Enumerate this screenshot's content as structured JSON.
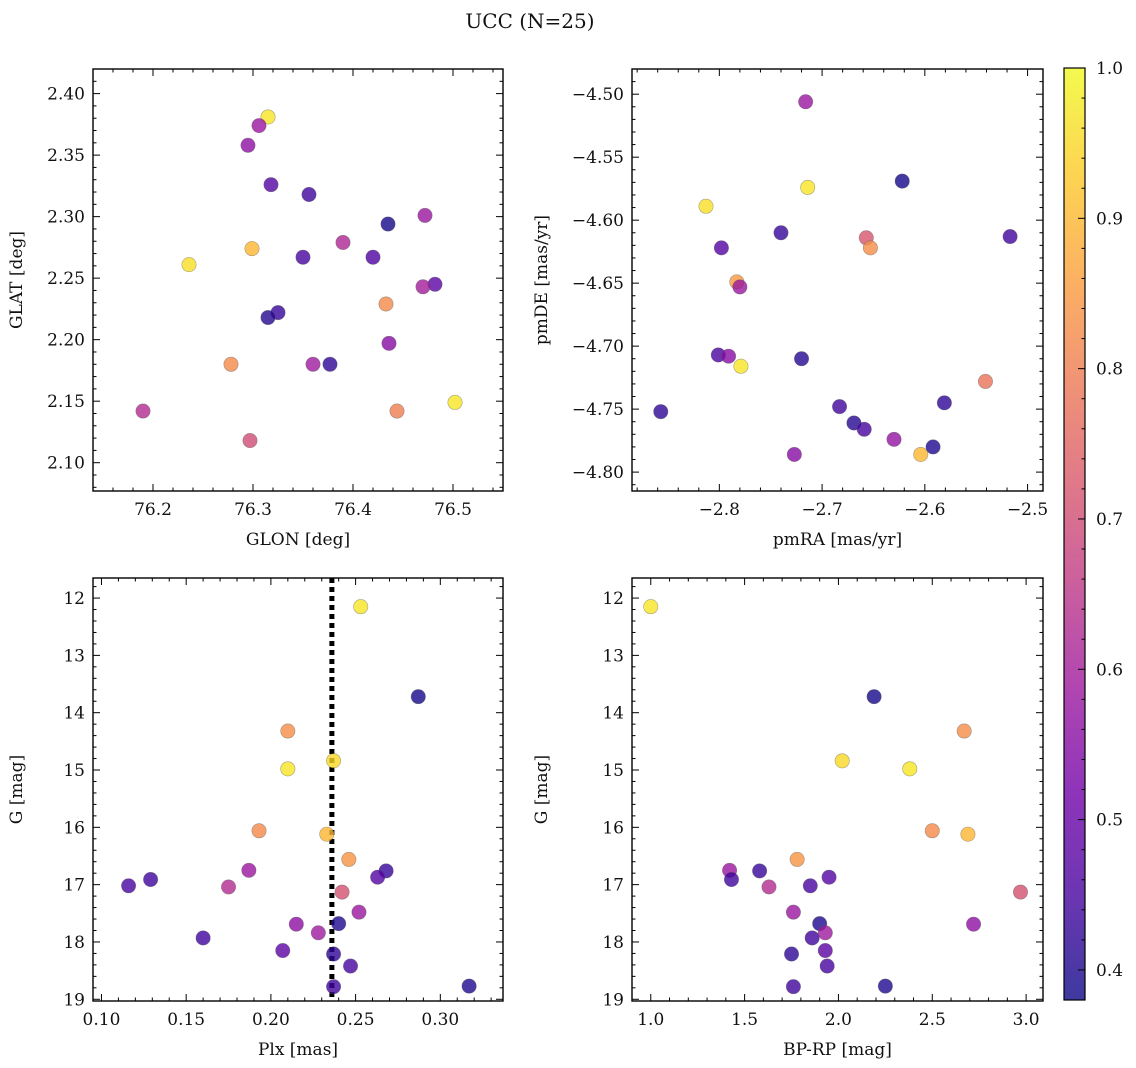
{
  "figure": {
    "title": "UCC (N=25)"
  },
  "colorbar": {
    "min": 0.38,
    "max": 1.0,
    "ticks": [
      0.4,
      0.5,
      0.6,
      0.7,
      0.8,
      0.9,
      1.0
    ],
    "tick_labels": [
      "0.4",
      "0.5",
      "0.6",
      "0.7",
      "0.8",
      "0.9",
      "1.0"
    ],
    "colormap": "plasma",
    "stops": [
      "#0d0887",
      "#46039f",
      "#7201a8",
      "#9c179e",
      "#bd3786",
      "#d8576b",
      "#ed7953",
      "#fb9f3a",
      "#fdca26",
      "#f0f921"
    ],
    "alpha": 0.8
  },
  "chart_data": [
    {
      "id": "glon-glat",
      "type": "scatter",
      "title": "",
      "xlabel": "GLON [deg]",
      "ylabel": "GLAT [deg]",
      "xlim": [
        76.14,
        76.55
      ],
      "ylim": [
        2.077,
        2.42
      ],
      "y_inverted": false,
      "xticks": [
        76.2,
        76.3,
        76.4,
        76.5
      ],
      "xtick_labels": [
        "76.2",
        "76.3",
        "76.4",
        "76.5"
      ],
      "yticks": [
        2.1,
        2.15,
        2.2,
        2.25,
        2.3,
        2.35,
        2.4
      ],
      "ytick_labels": [
        "2.10",
        "2.15",
        "2.20",
        "2.25",
        "2.30",
        "2.35",
        "2.40"
      ],
      "points": [
        {
          "x": 76.315,
          "y": 2.381,
          "c": 0.97
        },
        {
          "x": 76.306,
          "y": 2.374,
          "c": 0.58
        },
        {
          "x": 76.295,
          "y": 2.358,
          "c": 0.56
        },
        {
          "x": 76.318,
          "y": 2.326,
          "c": 0.47
        },
        {
          "x": 76.356,
          "y": 2.318,
          "c": 0.44
        },
        {
          "x": 76.472,
          "y": 2.301,
          "c": 0.58
        },
        {
          "x": 76.435,
          "y": 2.294,
          "c": 0.39
        },
        {
          "x": 76.39,
          "y": 2.279,
          "c": 0.62
        },
        {
          "x": 76.299,
          "y": 2.274,
          "c": 0.9
        },
        {
          "x": 76.35,
          "y": 2.267,
          "c": 0.45
        },
        {
          "x": 76.42,
          "y": 2.267,
          "c": 0.46
        },
        {
          "x": 76.236,
          "y": 2.261,
          "c": 0.96
        },
        {
          "x": 76.482,
          "y": 2.245,
          "c": 0.48
        },
        {
          "x": 76.47,
          "y": 2.243,
          "c": 0.6
        },
        {
          "x": 76.433,
          "y": 2.229,
          "c": 0.82
        },
        {
          "x": 76.325,
          "y": 2.222,
          "c": 0.43
        },
        {
          "x": 76.315,
          "y": 2.218,
          "c": 0.41
        },
        {
          "x": 76.436,
          "y": 2.197,
          "c": 0.55
        },
        {
          "x": 76.278,
          "y": 2.18,
          "c": 0.82
        },
        {
          "x": 76.36,
          "y": 2.18,
          "c": 0.59
        },
        {
          "x": 76.377,
          "y": 2.18,
          "c": 0.42
        },
        {
          "x": 76.502,
          "y": 2.149,
          "c": 0.97
        },
        {
          "x": 76.444,
          "y": 2.142,
          "c": 0.8
        },
        {
          "x": 76.19,
          "y": 2.142,
          "c": 0.63
        },
        {
          "x": 76.297,
          "y": 2.118,
          "c": 0.7
        }
      ]
    },
    {
      "id": "pm",
      "type": "scatter",
      "title": "",
      "xlabel": "pmRA [mas/yr]",
      "ylabel": "pmDE [mas/yr]",
      "xlim": [
        -2.885,
        -2.485
      ],
      "ylim": [
        -4.815,
        -4.48
      ],
      "y_inverted": false,
      "xticks": [
        -2.8,
        -2.7,
        -2.6,
        -2.5
      ],
      "xtick_labels": [
        "−2.8",
        "−2.7",
        "−2.6",
        "−2.5"
      ],
      "yticks": [
        -4.8,
        -4.75,
        -4.7,
        -4.65,
        -4.6,
        -4.55,
        -4.5
      ],
      "ytick_labels": [
        "−4.80",
        "−4.75",
        "−4.70",
        "−4.65",
        "−4.60",
        "−4.55",
        "−4.50"
      ],
      "points": [
        {
          "x": -2.716,
          "y": -4.506,
          "c": 0.58
        },
        {
          "x": -2.714,
          "y": -4.574,
          "c": 0.97
        },
        {
          "x": -2.622,
          "y": -4.569,
          "c": 0.39
        },
        {
          "x": -2.813,
          "y": -4.589,
          "c": 0.96
        },
        {
          "x": -2.74,
          "y": -4.61,
          "c": 0.43
        },
        {
          "x": -2.517,
          "y": -4.613,
          "c": 0.44
        },
        {
          "x": -2.657,
          "y": -4.614,
          "c": 0.72
        },
        {
          "x": -2.653,
          "y": -4.622,
          "c": 0.83
        },
        {
          "x": -2.798,
          "y": -4.622,
          "c": 0.47
        },
        {
          "x": -2.783,
          "y": -4.649,
          "c": 0.85
        },
        {
          "x": -2.78,
          "y": -4.653,
          "c": 0.58
        },
        {
          "x": -2.801,
          "y": -4.707,
          "c": 0.45
        },
        {
          "x": -2.791,
          "y": -4.708,
          "c": 0.55
        },
        {
          "x": -2.72,
          "y": -4.71,
          "c": 0.41
        },
        {
          "x": -2.779,
          "y": -4.716,
          "c": 0.97
        },
        {
          "x": -2.541,
          "y": -4.728,
          "c": 0.78
        },
        {
          "x": -2.581,
          "y": -4.745,
          "c": 0.42
        },
        {
          "x": -2.683,
          "y": -4.748,
          "c": 0.44
        },
        {
          "x": -2.857,
          "y": -4.752,
          "c": 0.42
        },
        {
          "x": -2.63,
          "y": -4.774,
          "c": 0.57
        },
        {
          "x": -2.669,
          "y": -4.761,
          "c": 0.41
        },
        {
          "x": -2.659,
          "y": -4.766,
          "c": 0.45
        },
        {
          "x": -2.592,
          "y": -4.78,
          "c": 0.4
        },
        {
          "x": -2.727,
          "y": -4.786,
          "c": 0.55
        },
        {
          "x": -2.604,
          "y": -4.786,
          "c": 0.9
        }
      ]
    },
    {
      "id": "plx-g",
      "type": "scatter",
      "title": "",
      "xlabel": "Plx [mas]",
      "ylabel": "G [mag]",
      "xlim": [
        0.095,
        0.337
      ],
      "ylim": [
        19.03,
        11.65
      ],
      "y_inverted": true,
      "vline": 0.236,
      "xticks": [
        0.1,
        0.15,
        0.2,
        0.25,
        0.3
      ],
      "xtick_labels": [
        "0.10",
        "0.15",
        "0.20",
        "0.25",
        "0.30"
      ],
      "yticks": [
        12,
        13,
        14,
        15,
        16,
        17,
        18,
        19
      ],
      "ytick_labels": [
        "12",
        "13",
        "14",
        "15",
        "16",
        "17",
        "18",
        "19"
      ],
      "points": [
        {
          "x": 0.253,
          "y": 12.15,
          "c": 0.97
        },
        {
          "x": 0.287,
          "y": 13.72,
          "c": 0.39
        },
        {
          "x": 0.21,
          "y": 14.32,
          "c": 0.83
        },
        {
          "x": 0.237,
          "y": 14.84,
          "c": 0.95
        },
        {
          "x": 0.21,
          "y": 14.98,
          "c": 0.97
        },
        {
          "x": 0.193,
          "y": 16.06,
          "c": 0.82
        },
        {
          "x": 0.233,
          "y": 16.12,
          "c": 0.9
        },
        {
          "x": 0.246,
          "y": 16.56,
          "c": 0.84
        },
        {
          "x": 0.187,
          "y": 16.75,
          "c": 0.58
        },
        {
          "x": 0.268,
          "y": 16.76,
          "c": 0.43
        },
        {
          "x": 0.263,
          "y": 16.87,
          "c": 0.47
        },
        {
          "x": 0.129,
          "y": 16.91,
          "c": 0.44
        },
        {
          "x": 0.116,
          "y": 17.02,
          "c": 0.45
        },
        {
          "x": 0.175,
          "y": 17.04,
          "c": 0.63
        },
        {
          "x": 0.242,
          "y": 17.13,
          "c": 0.71
        },
        {
          "x": 0.252,
          "y": 17.48,
          "c": 0.58
        },
        {
          "x": 0.24,
          "y": 17.68,
          "c": 0.4
        },
        {
          "x": 0.215,
          "y": 17.69,
          "c": 0.56
        },
        {
          "x": 0.228,
          "y": 17.84,
          "c": 0.59
        },
        {
          "x": 0.16,
          "y": 17.93,
          "c": 0.44
        },
        {
          "x": 0.207,
          "y": 18.15,
          "c": 0.48
        },
        {
          "x": 0.237,
          "y": 18.21,
          "c": 0.42
        },
        {
          "x": 0.247,
          "y": 18.42,
          "c": 0.45
        },
        {
          "x": 0.237,
          "y": 18.78,
          "c": 0.44
        },
        {
          "x": 0.317,
          "y": 18.77,
          "c": 0.4
        }
      ]
    },
    {
      "id": "cmd",
      "type": "scatter",
      "title": "",
      "xlabel": "BP-RP [mag]",
      "ylabel": "G [mag]",
      "xlim": [
        0.9,
        3.09
      ],
      "ylim": [
        19.03,
        11.65
      ],
      "y_inverted": true,
      "xticks": [
        1.0,
        1.5,
        2.0,
        2.5,
        3.0
      ],
      "xtick_labels": [
        "1.0",
        "1.5",
        "2.0",
        "2.5",
        "3.0"
      ],
      "yticks": [
        12,
        13,
        14,
        15,
        16,
        17,
        18,
        19
      ],
      "ytick_labels": [
        "12",
        "13",
        "14",
        "15",
        "16",
        "17",
        "18",
        "19"
      ],
      "points": [
        {
          "x": 1.0,
          "y": 12.15,
          "c": 0.97
        },
        {
          "x": 2.19,
          "y": 13.72,
          "c": 0.39
        },
        {
          "x": 2.67,
          "y": 14.32,
          "c": 0.83
        },
        {
          "x": 2.02,
          "y": 14.84,
          "c": 0.95
        },
        {
          "x": 2.38,
          "y": 14.98,
          "c": 0.97
        },
        {
          "x": 2.5,
          "y": 16.06,
          "c": 0.82
        },
        {
          "x": 2.69,
          "y": 16.12,
          "c": 0.9
        },
        {
          "x": 1.78,
          "y": 16.56,
          "c": 0.84
        },
        {
          "x": 1.42,
          "y": 16.75,
          "c": 0.58
        },
        {
          "x": 1.58,
          "y": 16.76,
          "c": 0.43
        },
        {
          "x": 1.95,
          "y": 16.87,
          "c": 0.47
        },
        {
          "x": 1.43,
          "y": 16.91,
          "c": 0.44
        },
        {
          "x": 1.85,
          "y": 17.02,
          "c": 0.45
        },
        {
          "x": 1.63,
          "y": 17.04,
          "c": 0.63
        },
        {
          "x": 2.97,
          "y": 17.13,
          "c": 0.71
        },
        {
          "x": 1.76,
          "y": 17.48,
          "c": 0.58
        },
        {
          "x": 1.9,
          "y": 17.68,
          "c": 0.4
        },
        {
          "x": 2.72,
          "y": 17.69,
          "c": 0.56
        },
        {
          "x": 1.93,
          "y": 17.84,
          "c": 0.59
        },
        {
          "x": 1.86,
          "y": 17.93,
          "c": 0.44
        },
        {
          "x": 1.93,
          "y": 18.15,
          "c": 0.48
        },
        {
          "x": 1.75,
          "y": 18.21,
          "c": 0.42
        },
        {
          "x": 1.94,
          "y": 18.42,
          "c": 0.45
        },
        {
          "x": 1.76,
          "y": 18.78,
          "c": 0.44
        },
        {
          "x": 2.25,
          "y": 18.77,
          "c": 0.4
        }
      ]
    }
  ]
}
